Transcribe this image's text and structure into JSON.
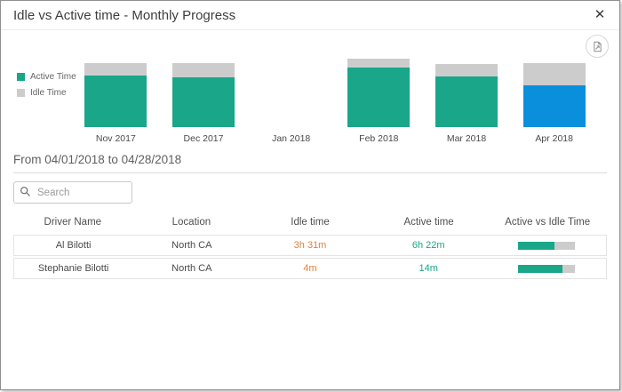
{
  "dialog": {
    "title": "Idle vs Active time - Monthly Progress"
  },
  "icons": {
    "close": "✕",
    "export": "export-report-icon",
    "search": "magnifier-icon"
  },
  "colors": {
    "active": "#1aa689",
    "idle": "#cccccc",
    "selected": "#0a8fdc",
    "idle_text": "#e1813c",
    "active_text": "#1aa689"
  },
  "legend": {
    "items": [
      {
        "label": "Active Time",
        "color": "#1aa689"
      },
      {
        "label": "Idle Time",
        "color": "#cccccc"
      }
    ]
  },
  "chart_data": {
    "type": "bar",
    "stacked": true,
    "categories": [
      "Nov 2017",
      "Dec 2017",
      "Jan 2018",
      "Feb 2018",
      "Mar 2018",
      "Apr 2018"
    ],
    "series": [
      {
        "name": "Active Time",
        "color": "#1aa689",
        "values": [
          58,
          56,
          0,
          67,
          57,
          47
        ]
      },
      {
        "name": "Idle Time",
        "color": "#cccccc",
        "values": [
          14,
          16,
          0,
          10,
          14,
          25
        ]
      }
    ],
    "highlight": {
      "index": 5,
      "category": "Apr 2018",
      "active_color": "#0a8fdc"
    },
    "title": "Idle vs Active time - Monthly Progress",
    "xlabel": "",
    "ylabel": "",
    "value_units": "relative bar height (no axis labels shown)",
    "ylim": [
      0,
      80
    ],
    "grid": false,
    "legend_position": "left"
  },
  "period": {
    "text": "From 04/01/2018 to 04/28/2018"
  },
  "search": {
    "placeholder": "Search"
  },
  "table": {
    "headers": [
      "Driver Name",
      "Location",
      "Idle time",
      "Active time",
      "Active vs Idle Time"
    ],
    "rows": [
      {
        "driver": "Al Bilotti",
        "location": "North CA",
        "idle": "3h 31m",
        "active": "6h 22m",
        "active_pct": 64
      },
      {
        "driver": "Stephanie Bilotti",
        "location": "North CA",
        "idle": "4m",
        "active": "14m",
        "active_pct": 78
      }
    ]
  }
}
